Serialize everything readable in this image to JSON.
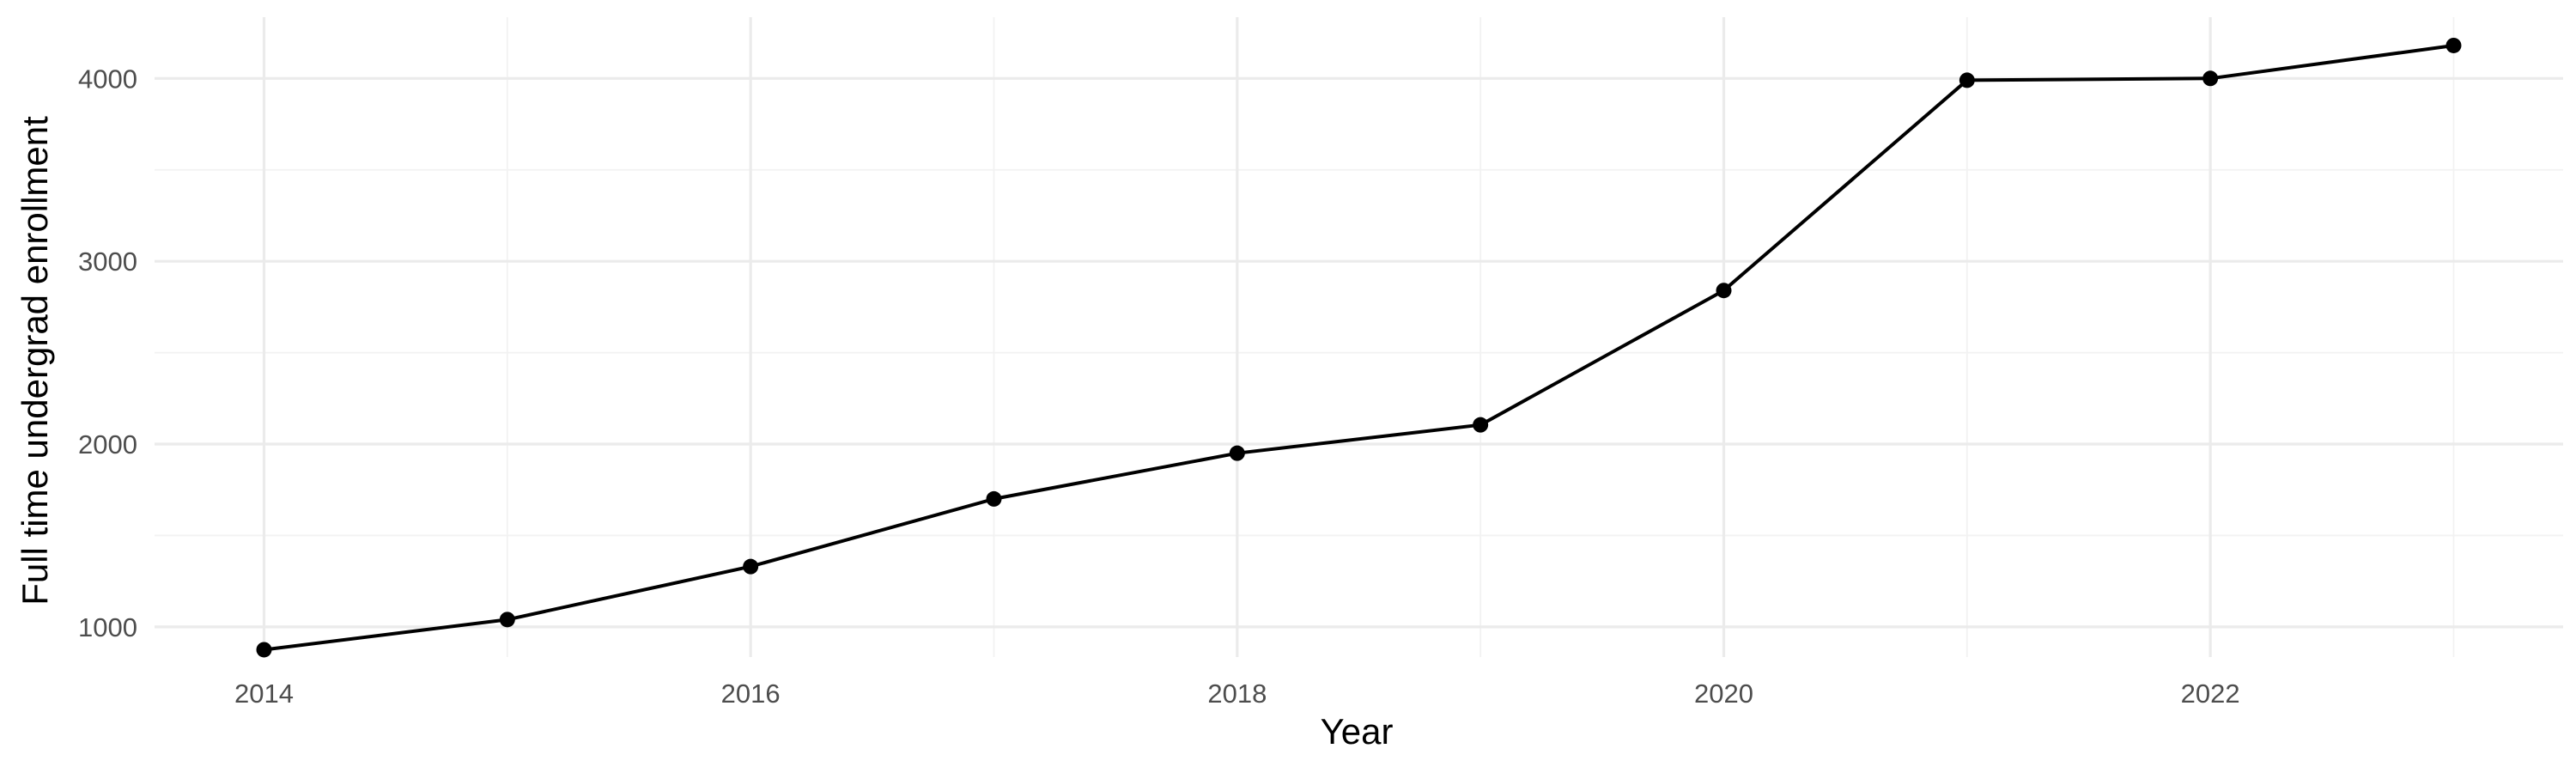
{
  "chart_data": {
    "type": "line",
    "xlabel": "Year",
    "ylabel": "Full time undergrad enrollment",
    "xlim": [
      2013.55,
      2023.45
    ],
    "ylim": [
      835,
      4335
    ],
    "x_ticks": [
      2014,
      2016,
      2018,
      2020,
      2022
    ],
    "y_ticks": [
      1000,
      2000,
      3000,
      4000
    ],
    "grid": true,
    "legend": "none",
    "series": [
      {
        "x": [
          2014,
          2015,
          2016,
          2017,
          2018,
          2019,
          2020,
          2021,
          2022,
          2023
        ],
        "y": [
          875,
          1040,
          1330,
          1700,
          1950,
          2105,
          2840,
          3990,
          4000,
          4180
        ],
        "color": "#000000"
      }
    ]
  }
}
